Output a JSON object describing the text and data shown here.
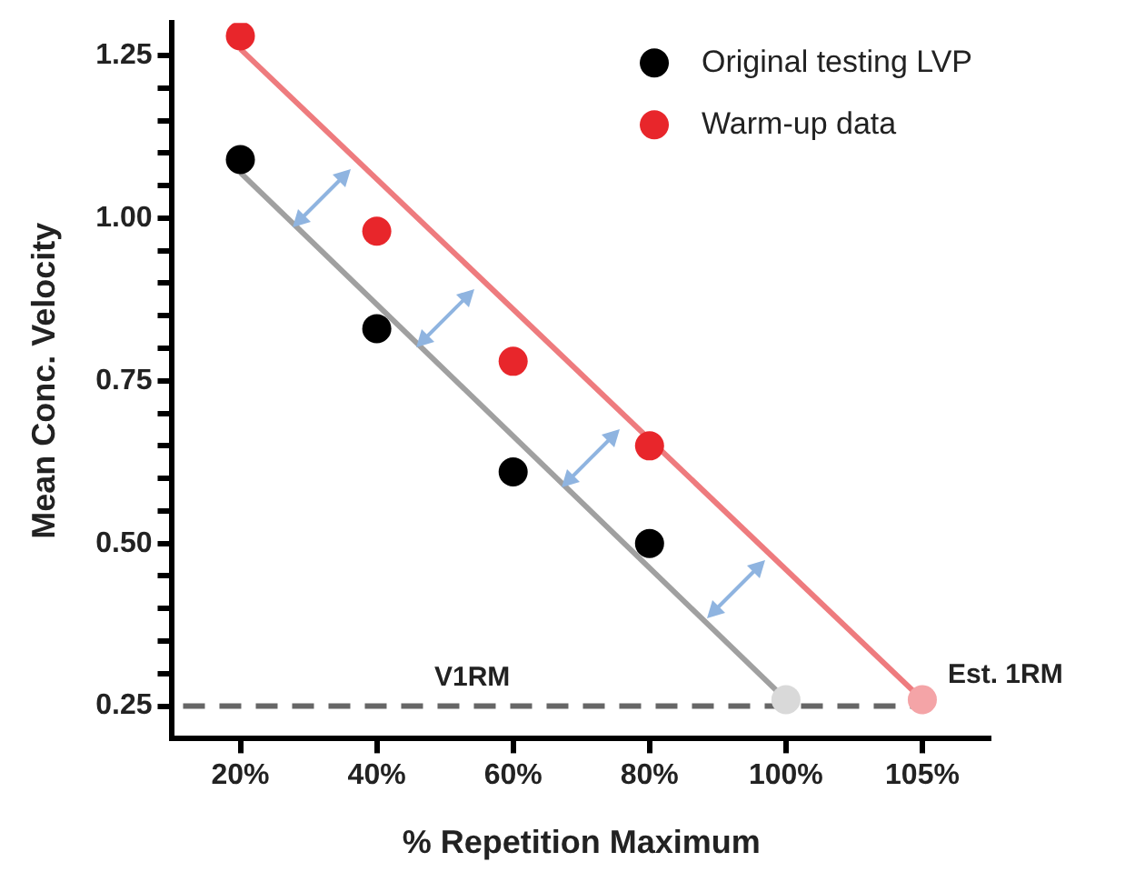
{
  "chart_data": {
    "type": "scatter",
    "xlabel": "% Repetition Maximum",
    "ylabel": "Mean Conc. Velocity",
    "categories": [
      "20%",
      "40%",
      "60%",
      "80%",
      "100%",
      "105%"
    ],
    "series": [
      {
        "type": "line",
        "color": "#a0a0a0",
        "x": [
          "20%",
          "100%"
        ],
        "values": [
          1.07,
          0.26
        ],
        "marker": "none"
      },
      {
        "type": "line",
        "color": "#ee7b7e",
        "x": [
          "20%",
          "105%"
        ],
        "values": [
          1.26,
          0.26
        ],
        "marker": "none"
      },
      {
        "name": "Original testing LVP",
        "type": "scatter",
        "color": "#000000",
        "colors": [
          "#000000",
          "#000000",
          "#000000",
          "#000000",
          "#d9d9d9",
          null
        ],
        "values": [
          1.09,
          0.83,
          0.61,
          0.5,
          0.26,
          null
        ],
        "marker": "circle"
      },
      {
        "name": "Warm-up data",
        "type": "scatter",
        "color": "#e8262b",
        "colors": [
          "#e8262b",
          "#e8262b",
          "#e8262b",
          "#e8262b",
          null,
          "#f4a4a7"
        ],
        "values": [
          1.28,
          0.98,
          0.78,
          0.65,
          null,
          0.26
        ],
        "marker": "circle"
      }
    ],
    "ylim": [
      0.2,
      1.3
    ],
    "yticks": [
      0.25,
      {
        "value": 0.3,
        "label": null
      },
      {
        "value": 0.35,
        "label": null
      },
      {
        "value": 0.4,
        "label": null
      },
      {
        "value": 0.45,
        "label": null
      },
      {
        "value": 0.5,
        "label": "0.50"
      },
      {
        "value": 0.55,
        "label": null
      },
      {
        "value": 0.6,
        "label": null
      },
      {
        "value": 0.65,
        "label": null
      },
      {
        "value": 0.7,
        "label": null
      },
      0.75,
      {
        "value": 0.8,
        "label": null
      },
      {
        "value": 0.85,
        "label": null
      },
      {
        "value": 0.9,
        "label": null
      },
      {
        "value": 0.95,
        "label": null
      },
      {
        "value": 1.0,
        "label": "1.00"
      },
      {
        "value": 1.05,
        "label": null
      },
      {
        "value": 1.1,
        "label": null
      },
      {
        "value": 1.15,
        "label": null
      },
      {
        "value": 1.2,
        "label": null
      },
      1.25
    ],
    "ref_lines": [
      {
        "axis": "y",
        "value": 0.25,
        "label": "V1RM",
        "color": "#666666",
        "line_style": "dashed"
      }
    ],
    "annotations": [
      {
        "text": "Est. 1RM",
        "x": "105%",
        "y": 0.26
      }
    ],
    "grid": false,
    "legend": "top right"
  }
}
